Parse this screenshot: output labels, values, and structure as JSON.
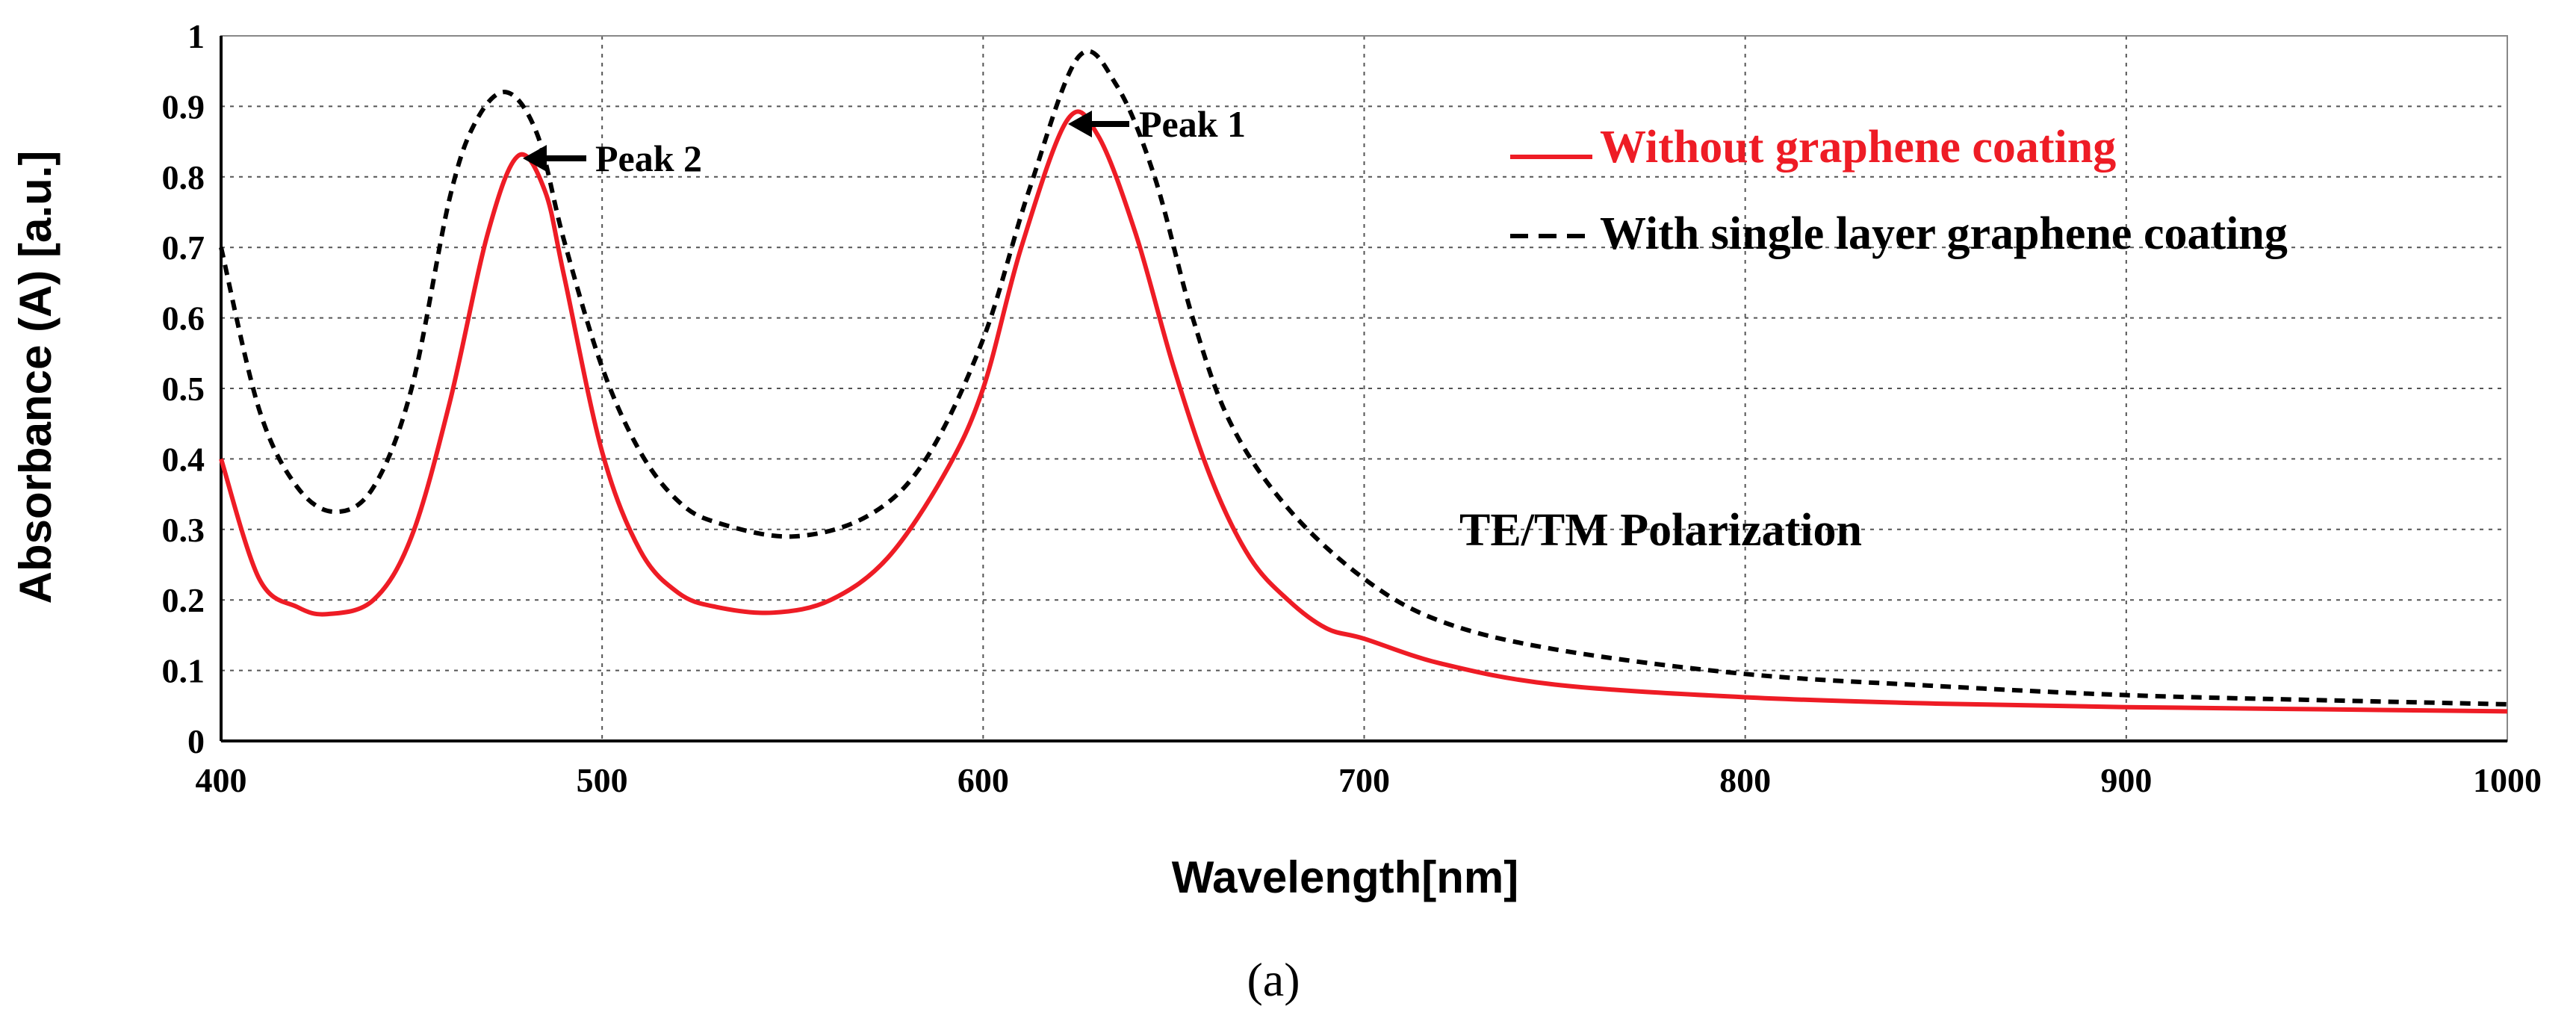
{
  "chart_data": {
    "type": "line",
    "title": "",
    "xlabel": "Wavelength[nm]",
    "ylabel": "Absorbance (A) [a.u.]",
    "xlim": [
      400,
      1000
    ],
    "ylim": [
      0,
      1
    ],
    "grid": true,
    "x_ticks": [
      "400",
      "500",
      "600",
      "700",
      "800",
      "900",
      "1000"
    ],
    "y_ticks": [
      "0",
      "0.1",
      "0.2",
      "0.3",
      "0.4",
      "0.5",
      "0.6",
      "0.7",
      "0.8",
      "0.9",
      "1"
    ],
    "legend_position": "top-right",
    "series": [
      {
        "name": "Without graphene coating",
        "color": "#ee1c25",
        "style": "solid",
        "x": [
          400,
          410,
          420,
          428,
          440,
          450,
          460,
          470,
          478,
          485,
          490,
          500,
          510,
          520,
          530,
          545,
          560,
          575,
          590,
          600,
          610,
          622,
          630,
          640,
          650,
          660,
          670,
          680,
          690,
          700,
          720,
          750,
          800,
          850,
          900,
          950,
          1000
        ],
        "y": [
          0.4,
          0.23,
          0.19,
          0.18,
          0.2,
          0.29,
          0.48,
          0.72,
          0.83,
          0.78,
          0.66,
          0.41,
          0.27,
          0.21,
          0.19,
          0.182,
          0.2,
          0.26,
          0.38,
          0.5,
          0.7,
          0.88,
          0.86,
          0.72,
          0.53,
          0.37,
          0.26,
          0.2,
          0.16,
          0.145,
          0.11,
          0.08,
          0.062,
          0.053,
          0.048,
          0.045,
          0.042
        ]
      },
      {
        "name": "With single layer graphene coating",
        "color": "#000000",
        "style": "dashed",
        "x": [
          400,
          410,
          420,
          430,
          440,
          450,
          460,
          467,
          475,
          483,
          490,
          500,
          510,
          520,
          530,
          550,
          570,
          585,
          600,
          612,
          625,
          635,
          645,
          655,
          665,
          680,
          700,
          720,
          750,
          800,
          850,
          900,
          950,
          1000
        ],
        "y": [
          0.7,
          0.47,
          0.36,
          0.325,
          0.36,
          0.5,
          0.77,
          0.88,
          0.92,
          0.86,
          0.71,
          0.53,
          0.41,
          0.34,
          0.31,
          0.29,
          0.32,
          0.4,
          0.57,
          0.78,
          0.97,
          0.93,
          0.8,
          0.6,
          0.45,
          0.33,
          0.23,
          0.17,
          0.13,
          0.095,
          0.078,
          0.065,
          0.058,
          0.052
        ]
      }
    ],
    "annotations": [
      {
        "text": "Peak 1",
        "x": 622,
        "y": 0.88
      },
      {
        "text": "Peak 2",
        "x": 478,
        "y": 0.83
      },
      {
        "text": "TE/TM Polarization",
        "x": 740,
        "y": 0.29
      }
    ]
  },
  "caption": "(a)"
}
